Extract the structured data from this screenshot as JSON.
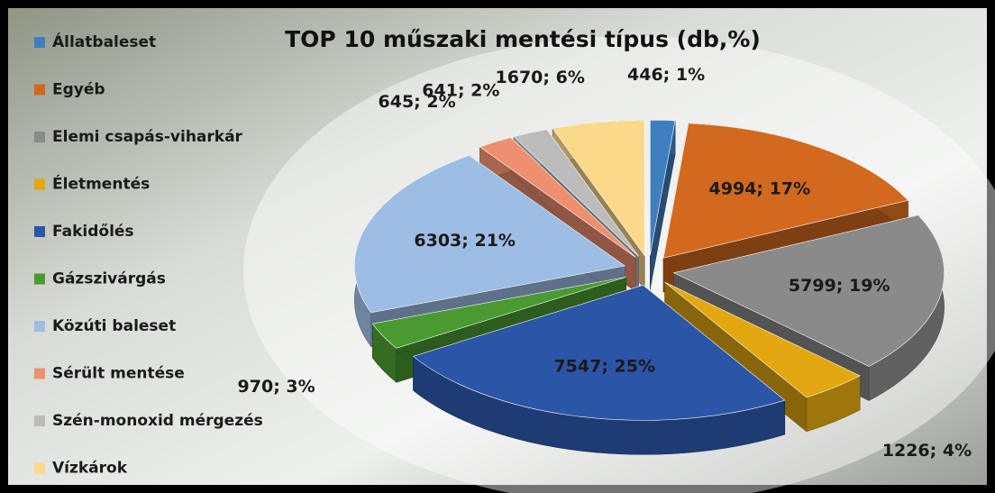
{
  "chart_data": {
    "type": "pie",
    "title": "TOP 10 műszaki mentési típus (db,%)",
    "categories": [
      "Állatbaleset",
      "Egyéb",
      "Elemi csapás-viharkár",
      "Életmentés",
      "Fakidőlés",
      "Gázszivárgás",
      "Közúti baleset",
      "Sérült mentése",
      "Szén-monoxid mérgezés",
      "Vízkárok"
    ],
    "values": [
      446,
      4994,
      5799,
      1226,
      7547,
      970,
      6303,
      645,
      641,
      1670
    ],
    "value_labels": [
      "446; 1%",
      "4994; 17%",
      "5799; 19%",
      "1226; 4%",
      "7547; 25%",
      "970; 3%",
      "6303; 21%",
      "645; 2%",
      "641; 2%",
      "1670; 6%"
    ],
    "colors": [
      "#3f7fc0",
      "#d2691e",
      "#8a8a8a",
      "#e3a810",
      "#2b55a6",
      "#4a9a32",
      "#9dbde4",
      "#ee9070",
      "#bcbcbc",
      "#fbd88a"
    ],
    "legend": "left"
  }
}
